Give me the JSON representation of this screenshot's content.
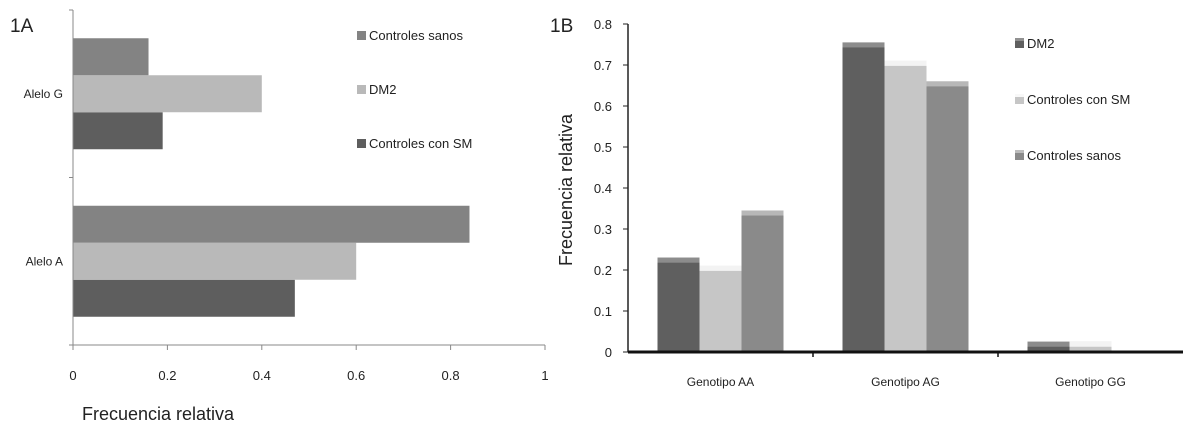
{
  "chart_data": [
    {
      "panel_label": "1A",
      "type": "bar",
      "orientation": "horizontal",
      "categories": [
        "Alelo A",
        "Alelo G"
      ],
      "series": [
        {
          "name": "Controles con SM",
          "values": [
            0.47,
            0.19
          ],
          "color": "#5e5e5e"
        },
        {
          "name": "DM2",
          "values": [
            0.6,
            0.4
          ],
          "color": "#b9b9b9"
        },
        {
          "name": "Controles sanos",
          "values": [
            0.84,
            0.16
          ],
          "color": "#838383"
        }
      ],
      "legend_order": [
        "Controles sanos",
        "DM2",
        "Controles con SM"
      ],
      "xlabel": "Frecuencia relativa",
      "xlim": [
        0,
        1
      ],
      "xticks": [
        "0",
        "0.2",
        "0.4",
        "0.6",
        "0.8",
        "1"
      ],
      "grid": false,
      "legend_position": "top-right"
    },
    {
      "panel_label": "1B",
      "type": "bar",
      "orientation": "vertical",
      "categories": [
        "Genotipo AA",
        "Genotipo AG",
        "Genotipo GG"
      ],
      "series": [
        {
          "name": "DM2",
          "values": [
            0.23,
            0.755,
            0.025
          ],
          "color": "#5f5f5f"
        },
        {
          "name": "Controles  con SM",
          "values": [
            0.21,
            0.71,
            0.025
          ],
          "color": "#c6c6c6"
        },
        {
          "name": "Controles sanos",
          "values": [
            0.345,
            0.66,
            0.0
          ],
          "color": "#8a8a8a"
        }
      ],
      "legend_order": [
        "DM2",
        "Controles  con SM",
        "Controles sanos"
      ],
      "ylabel": "Frecuencia relativa",
      "ylim": [
        0,
        0.8
      ],
      "yticks": [
        "0",
        "0.1",
        "0.2",
        "0.3",
        "0.4",
        "0.5",
        "0.6",
        "0.7",
        "0.8"
      ],
      "grid": false,
      "legend_position": "top-right"
    }
  ]
}
